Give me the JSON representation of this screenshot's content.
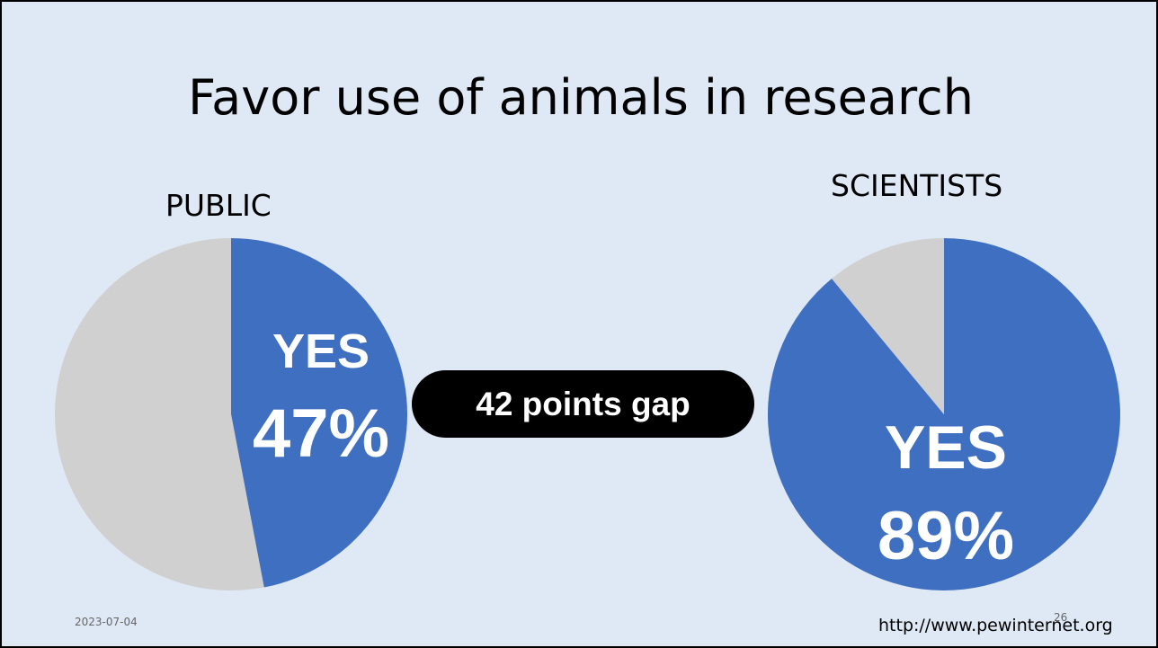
{
  "title": "Favor use of animals in research",
  "footer": {
    "date": "2023-07-04",
    "page": "26",
    "url": "http://www.pewinternet.org"
  },
  "gap_label": "42 points gap",
  "colors": {
    "background": "#dfe9f6",
    "yes": "#3f6fc1",
    "other": "#d0d0d0",
    "pill": "#000000"
  },
  "chart_data": [
    {
      "type": "pie",
      "title": "PUBLIC",
      "slices": [
        {
          "label": "YES",
          "value": 47,
          "color": "#3f6fc1"
        },
        {
          "label": "",
          "value": 53,
          "color": "#d0d0d0"
        }
      ],
      "labels": {
        "yes": "YES",
        "percent": "47%"
      }
    },
    {
      "type": "pie",
      "title": "SCIENTISTS",
      "slices": [
        {
          "label": "YES",
          "value": 89,
          "color": "#3f6fc1"
        },
        {
          "label": "",
          "value": 11,
          "color": "#d0d0d0"
        }
      ],
      "labels": {
        "yes": "YES",
        "percent": "89%"
      }
    }
  ]
}
